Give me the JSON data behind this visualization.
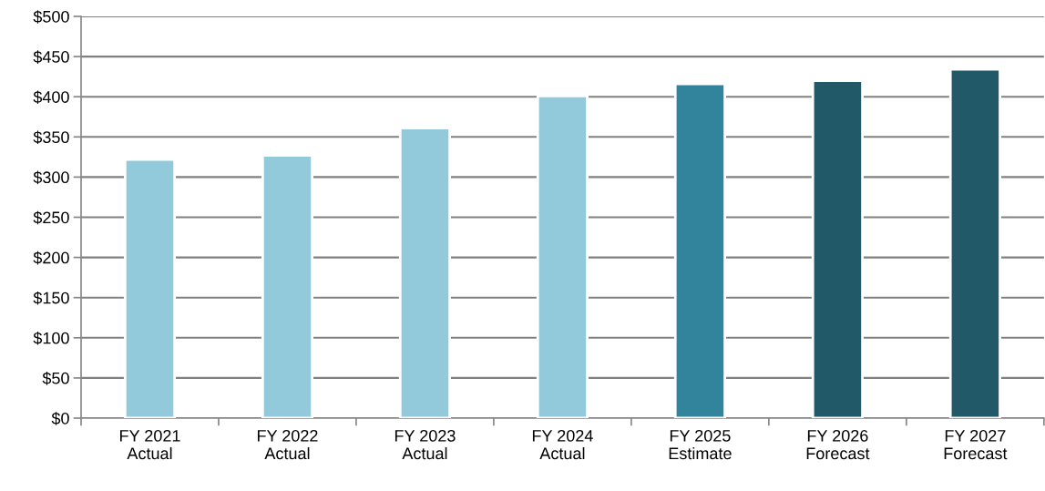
{
  "chart_data": {
    "type": "bar",
    "categories": [
      "FY 2021\nActual",
      "FY 2022\nActual",
      "FY 2023\nActual",
      "FY 2024\nActual",
      "FY 2025\nEstimate",
      "FY 2026\nForecast",
      "FY 2027\nForecast"
    ],
    "values": [
      322,
      327,
      361,
      401,
      416,
      420,
      434
    ],
    "colors": [
      "#92cadb",
      "#92cadb",
      "#92cadb",
      "#92cadb",
      "#31849b",
      "#215968",
      "#215968"
    ],
    "ylim": [
      0,
      500
    ],
    "yticks": [
      {
        "value": 0,
        "label": "$0"
      },
      {
        "value": 50,
        "label": "$50"
      },
      {
        "value": 100,
        "label": "$100"
      },
      {
        "value": 150,
        "label": "$150"
      },
      {
        "value": 200,
        "label": "$200"
      },
      {
        "value": 250,
        "label": "$250"
      },
      {
        "value": 300,
        "label": "$300"
      },
      {
        "value": 350,
        "label": "$350"
      },
      {
        "value": 400,
        "label": "$400"
      },
      {
        "value": 450,
        "label": "$450"
      },
      {
        "value": 500,
        "label": "$500"
      }
    ],
    "grid": "y"
  }
}
